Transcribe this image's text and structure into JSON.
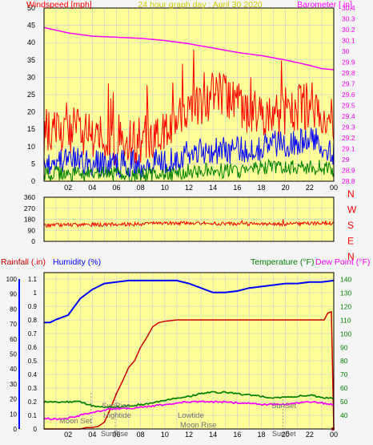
{
  "colors": {
    "plot_bg": "#ffff99",
    "frame_bg": "#f5f5f5",
    "grid": "#d0d0d0",
    "wind": "#ff0000",
    "gust_mid": "#0000ff",
    "wind_low": "#008000",
    "barometer": "#ff00ff",
    "direction": "#ff0000",
    "rain": "#cc0000",
    "humidity": "#0000ff",
    "temperature": "#008000",
    "dewpoint": "#ff00ff",
    "axis_text": "#000000"
  },
  "panel1": {
    "title": "24 hour graph day : April 30 2020",
    "left_label": "Windspeed [mph]",
    "right_label": "Barometer [ in]",
    "left_ticks": [
      "0",
      "5",
      "10",
      "15",
      "20",
      "25",
      "30",
      "35",
      "40",
      "45",
      "50"
    ],
    "right_ticks": [
      "28.8",
      "28.9",
      "29",
      "29.1",
      "29.2",
      "29.3",
      "29.4",
      "29.5",
      "29.6",
      "29.7",
      "29.8",
      "29.9",
      "30",
      "30.1",
      "30.2",
      "30.3",
      "30.4"
    ],
    "x_ticks": [
      "02",
      "04",
      "06",
      "08",
      "10",
      "12",
      "14",
      "16",
      "18",
      "20",
      "22",
      "00"
    ]
  },
  "panel2": {
    "left_ticks": [
      "0",
      "90",
      "180",
      "270",
      "360"
    ],
    "right_labels": [
      "N",
      "W",
      "S",
      "E",
      "N"
    ]
  },
  "panel3": {
    "rain_label": "Rainfall (.in)",
    "humidity_label": "Humidity (%)",
    "temperature_label": "Temperature (°F)",
    "dewpoint_label": "Dew Point (°F)",
    "rain_ticks": [
      "0",
      "0.1",
      "0.2",
      "0.3",
      "0.4",
      "0.5",
      "0.6",
      "0.7",
      "0.8",
      "0.9",
      "1",
      "1.1"
    ],
    "humidity_ticks": [
      "0",
      "10",
      "20",
      "30",
      "40",
      "50",
      "60",
      "70",
      "80",
      "90",
      "100"
    ],
    "temp_ticks": [
      "40",
      "50",
      "60",
      "70",
      "80",
      "90",
      "100",
      "110",
      "120",
      "130",
      "140"
    ],
    "x_ticks": [
      "02",
      "04",
      "06",
      "08",
      "10",
      "12",
      "14",
      "16",
      "18",
      "20",
      "22",
      "00"
    ],
    "events": {
      "moonset": "Moon Set",
      "sunrise": "SunRise",
      "hightide": "Hightide",
      "lowtide": "Lowtide",
      "moonrise": "Moon Rise",
      "sunset": "SunSet",
      "sunrise_axis": "SunRise",
      "sunset_axis": "SunSet"
    }
  },
  "chart_data": [
    {
      "type": "line",
      "title": "24 hour graph day : April 30 2020",
      "x_unit": "hour",
      "xlim": [
        0,
        24
      ],
      "ylabel": "Windspeed [mph]",
      "ylim": [
        0,
        50
      ],
      "y2label": "Barometer [ in]",
      "y2lim": [
        28.8,
        30.4
      ],
      "series": [
        {
          "key": "gust",
          "axis": "left",
          "color_key": "wind",
          "x": [
            0,
            1,
            2,
            3,
            4,
            5,
            6,
            7,
            8,
            9,
            10,
            11,
            12,
            13,
            14,
            15,
            16,
            17,
            18,
            19,
            20,
            21,
            22,
            23,
            24
          ],
          "values": [
            14,
            15,
            15,
            14,
            13,
            12,
            11,
            11,
            12,
            13,
            15,
            18,
            21,
            23,
            25,
            24,
            22,
            20,
            19,
            19,
            20,
            21,
            22,
            20,
            18
          ]
        },
        {
          "key": "average",
          "axis": "left",
          "color_key": "gust_mid",
          "x": [
            0,
            1,
            2,
            3,
            4,
            5,
            6,
            7,
            8,
            9,
            10,
            11,
            12,
            13,
            14,
            15,
            16,
            17,
            18,
            19,
            20,
            21,
            22,
            23,
            24
          ],
          "values": [
            6,
            6,
            6,
            6,
            5,
            5,
            5,
            5,
            5,
            6,
            6,
            7,
            8,
            9,
            9,
            9,
            9,
            9,
            10,
            11,
            11,
            11,
            12,
            11,
            8
          ]
        },
        {
          "key": "low",
          "axis": "left",
          "color_key": "wind_low",
          "x": [
            0,
            1,
            2,
            3,
            4,
            5,
            6,
            7,
            8,
            9,
            10,
            11,
            12,
            13,
            14,
            15,
            16,
            17,
            18,
            19,
            20,
            21,
            22,
            23,
            24
          ],
          "values": [
            2,
            2,
            2,
            2,
            2,
            2,
            2,
            2,
            2,
            2,
            2,
            2,
            3,
            3,
            3,
            3,
            3,
            3,
            4,
            4,
            4,
            4,
            4,
            4,
            3
          ]
        },
        {
          "key": "barometer",
          "axis": "right",
          "color_key": "barometer",
          "x": [
            0,
            2,
            4,
            6,
            8,
            10,
            12,
            14,
            16,
            18,
            20,
            22,
            23,
            24
          ],
          "values": [
            30.22,
            30.17,
            30.14,
            30.13,
            30.12,
            30.1,
            30.07,
            30.03,
            29.99,
            29.96,
            29.92,
            29.87,
            29.84,
            29.83
          ]
        }
      ]
    },
    {
      "type": "line",
      "x_unit": "hour",
      "xlim": [
        0,
        24
      ],
      "ylabel": "",
      "ylim": [
        0,
        360
      ],
      "series": [
        {
          "key": "wind_direction",
          "color_key": "direction",
          "x": [
            0,
            2,
            4,
            6,
            8,
            10,
            12,
            14,
            16,
            18,
            20,
            22,
            24
          ],
          "values": [
            130,
            135,
            135,
            140,
            140,
            150,
            150,
            145,
            145,
            140,
            140,
            145,
            150
          ]
        }
      ]
    },
    {
      "type": "line",
      "x_unit": "hour",
      "xlim": [
        0,
        24
      ],
      "ylabel": "Rainfall (.in)",
      "ylim": [
        0,
        1.1
      ],
      "y2label": "Humidity (%)",
      "y2lim": [
        0,
        100
      ],
      "y3label": "Temperature (°F) / Dew Point (°F)",
      "y3lim": [
        30,
        145
      ],
      "series": [
        {
          "key": "rain",
          "axis": "rain",
          "color_key": "rain",
          "x": [
            0,
            1,
            2,
            3,
            3.5,
            4,
            4.5,
            5,
            5.5,
            6,
            6.5,
            7,
            7.5,
            8,
            8.5,
            9,
            9.5,
            10,
            11,
            12,
            13,
            14,
            16,
            18,
            20,
            22,
            23.2,
            23.5,
            23.8,
            24
          ],
          "values": [
            0,
            0,
            0,
            0,
            0.01,
            0.01,
            0.02,
            0.05,
            0.15,
            0.26,
            0.35,
            0.45,
            0.5,
            0.6,
            0.67,
            0.75,
            0.78,
            0.79,
            0.8,
            0.8,
            0.8,
            0.8,
            0.8,
            0.8,
            0.8,
            0.8,
            0.8,
            0.85,
            0.86,
            0
          ]
        },
        {
          "key": "humidity",
          "axis": "humidity",
          "color_key": "humidity",
          "x": [
            0,
            0.5,
            1,
            2,
            3,
            4,
            5,
            6,
            7,
            8,
            9,
            10,
            11,
            12,
            13,
            14,
            15,
            16,
            17,
            18,
            19,
            20,
            21,
            22,
            23,
            24
          ],
          "values": [
            71,
            71,
            73,
            76,
            87,
            93,
            97,
            98,
            99,
            99,
            99,
            99,
            99,
            97,
            94,
            91,
            91,
            92,
            94,
            95,
            96,
            97,
            97,
            98,
            98,
            99
          ]
        },
        {
          "key": "temperature",
          "axis": "temp",
          "color_key": "temperature",
          "x": [
            0,
            2,
            3,
            4,
            5,
            6,
            7,
            8,
            9,
            10,
            11,
            12,
            13,
            14,
            15,
            16,
            17,
            18,
            19,
            20,
            21,
            22,
            23,
            24
          ],
          "values": [
            50,
            50,
            50,
            47,
            46,
            46,
            47,
            48,
            49,
            51,
            53,
            54,
            56,
            57,
            57,
            56,
            55,
            54,
            53,
            53,
            54,
            55,
            53,
            53
          ]
        },
        {
          "key": "dewpoint",
          "axis": "temp",
          "color_key": "dewpoint",
          "x": [
            0,
            1,
            2,
            3,
            4,
            5,
            6,
            7,
            8,
            9,
            10,
            11,
            12,
            13,
            14,
            15,
            16,
            17,
            18,
            19,
            20,
            21,
            22,
            23,
            24
          ],
          "values": [
            38,
            37,
            38,
            40,
            42,
            44,
            45,
            45,
            46,
            47,
            48,
            49,
            50,
            50,
            50,
            50,
            49,
            49,
            48,
            48,
            48,
            49,
            50,
            49,
            48
          ]
        }
      ]
    }
  ]
}
